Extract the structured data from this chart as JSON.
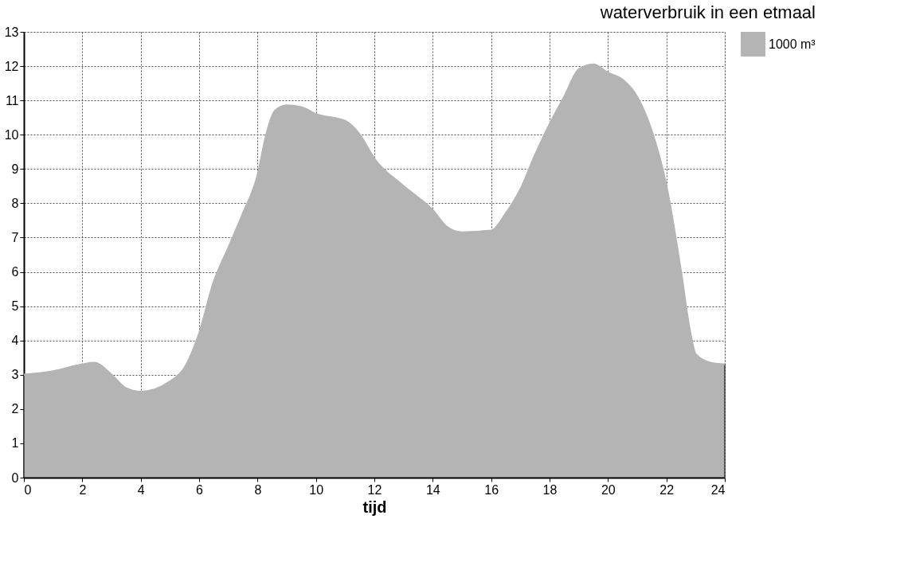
{
  "chart_data": {
    "type": "area",
    "title": "waterverbruik in een etmaal",
    "xlabel": "tijd",
    "legend": "right",
    "grid": true,
    "xlim": [
      0,
      24
    ],
    "xticks": [
      0,
      2,
      4,
      6,
      8,
      10,
      12,
      14,
      16,
      18,
      20,
      22,
      24
    ],
    "ylim": [
      0,
      13
    ],
    "yticks": [
      0,
      1,
      2,
      3,
      4,
      5,
      6,
      7,
      8,
      9,
      10,
      11,
      12,
      13
    ],
    "x": [
      0,
      1,
      2,
      2.4,
      3,
      3.5,
      4,
      5,
      5.5,
      6,
      6.5,
      7,
      7.5,
      8,
      8.3,
      8.6,
      9,
      9.5,
      10,
      11,
      11.5,
      12,
      13,
      14,
      14.5,
      15,
      16,
      16.5,
      17,
      17.5,
      18,
      18.5,
      19,
      19.5,
      20,
      20.5,
      21,
      21.5,
      22,
      22.5,
      22.8,
      23,
      23.5,
      24
    ],
    "series": [
      {
        "name": "1000 m³",
        "color": "#b4b4b4",
        "values": [
          3.0,
          3.1,
          3.3,
          3.35,
          3.0,
          2.6,
          2.5,
          2.8,
          3.2,
          4.2,
          5.7,
          6.7,
          7.7,
          8.8,
          10.0,
          10.7,
          10.85,
          10.8,
          10.6,
          10.4,
          10.0,
          9.3,
          8.5,
          7.8,
          7.3,
          7.15,
          7.2,
          7.7,
          8.4,
          9.4,
          10.3,
          11.1,
          11.9,
          12.05,
          11.8,
          11.6,
          11.1,
          10.1,
          8.5,
          6.0,
          4.3,
          3.6,
          3.35,
          3.3
        ]
      }
    ]
  }
}
